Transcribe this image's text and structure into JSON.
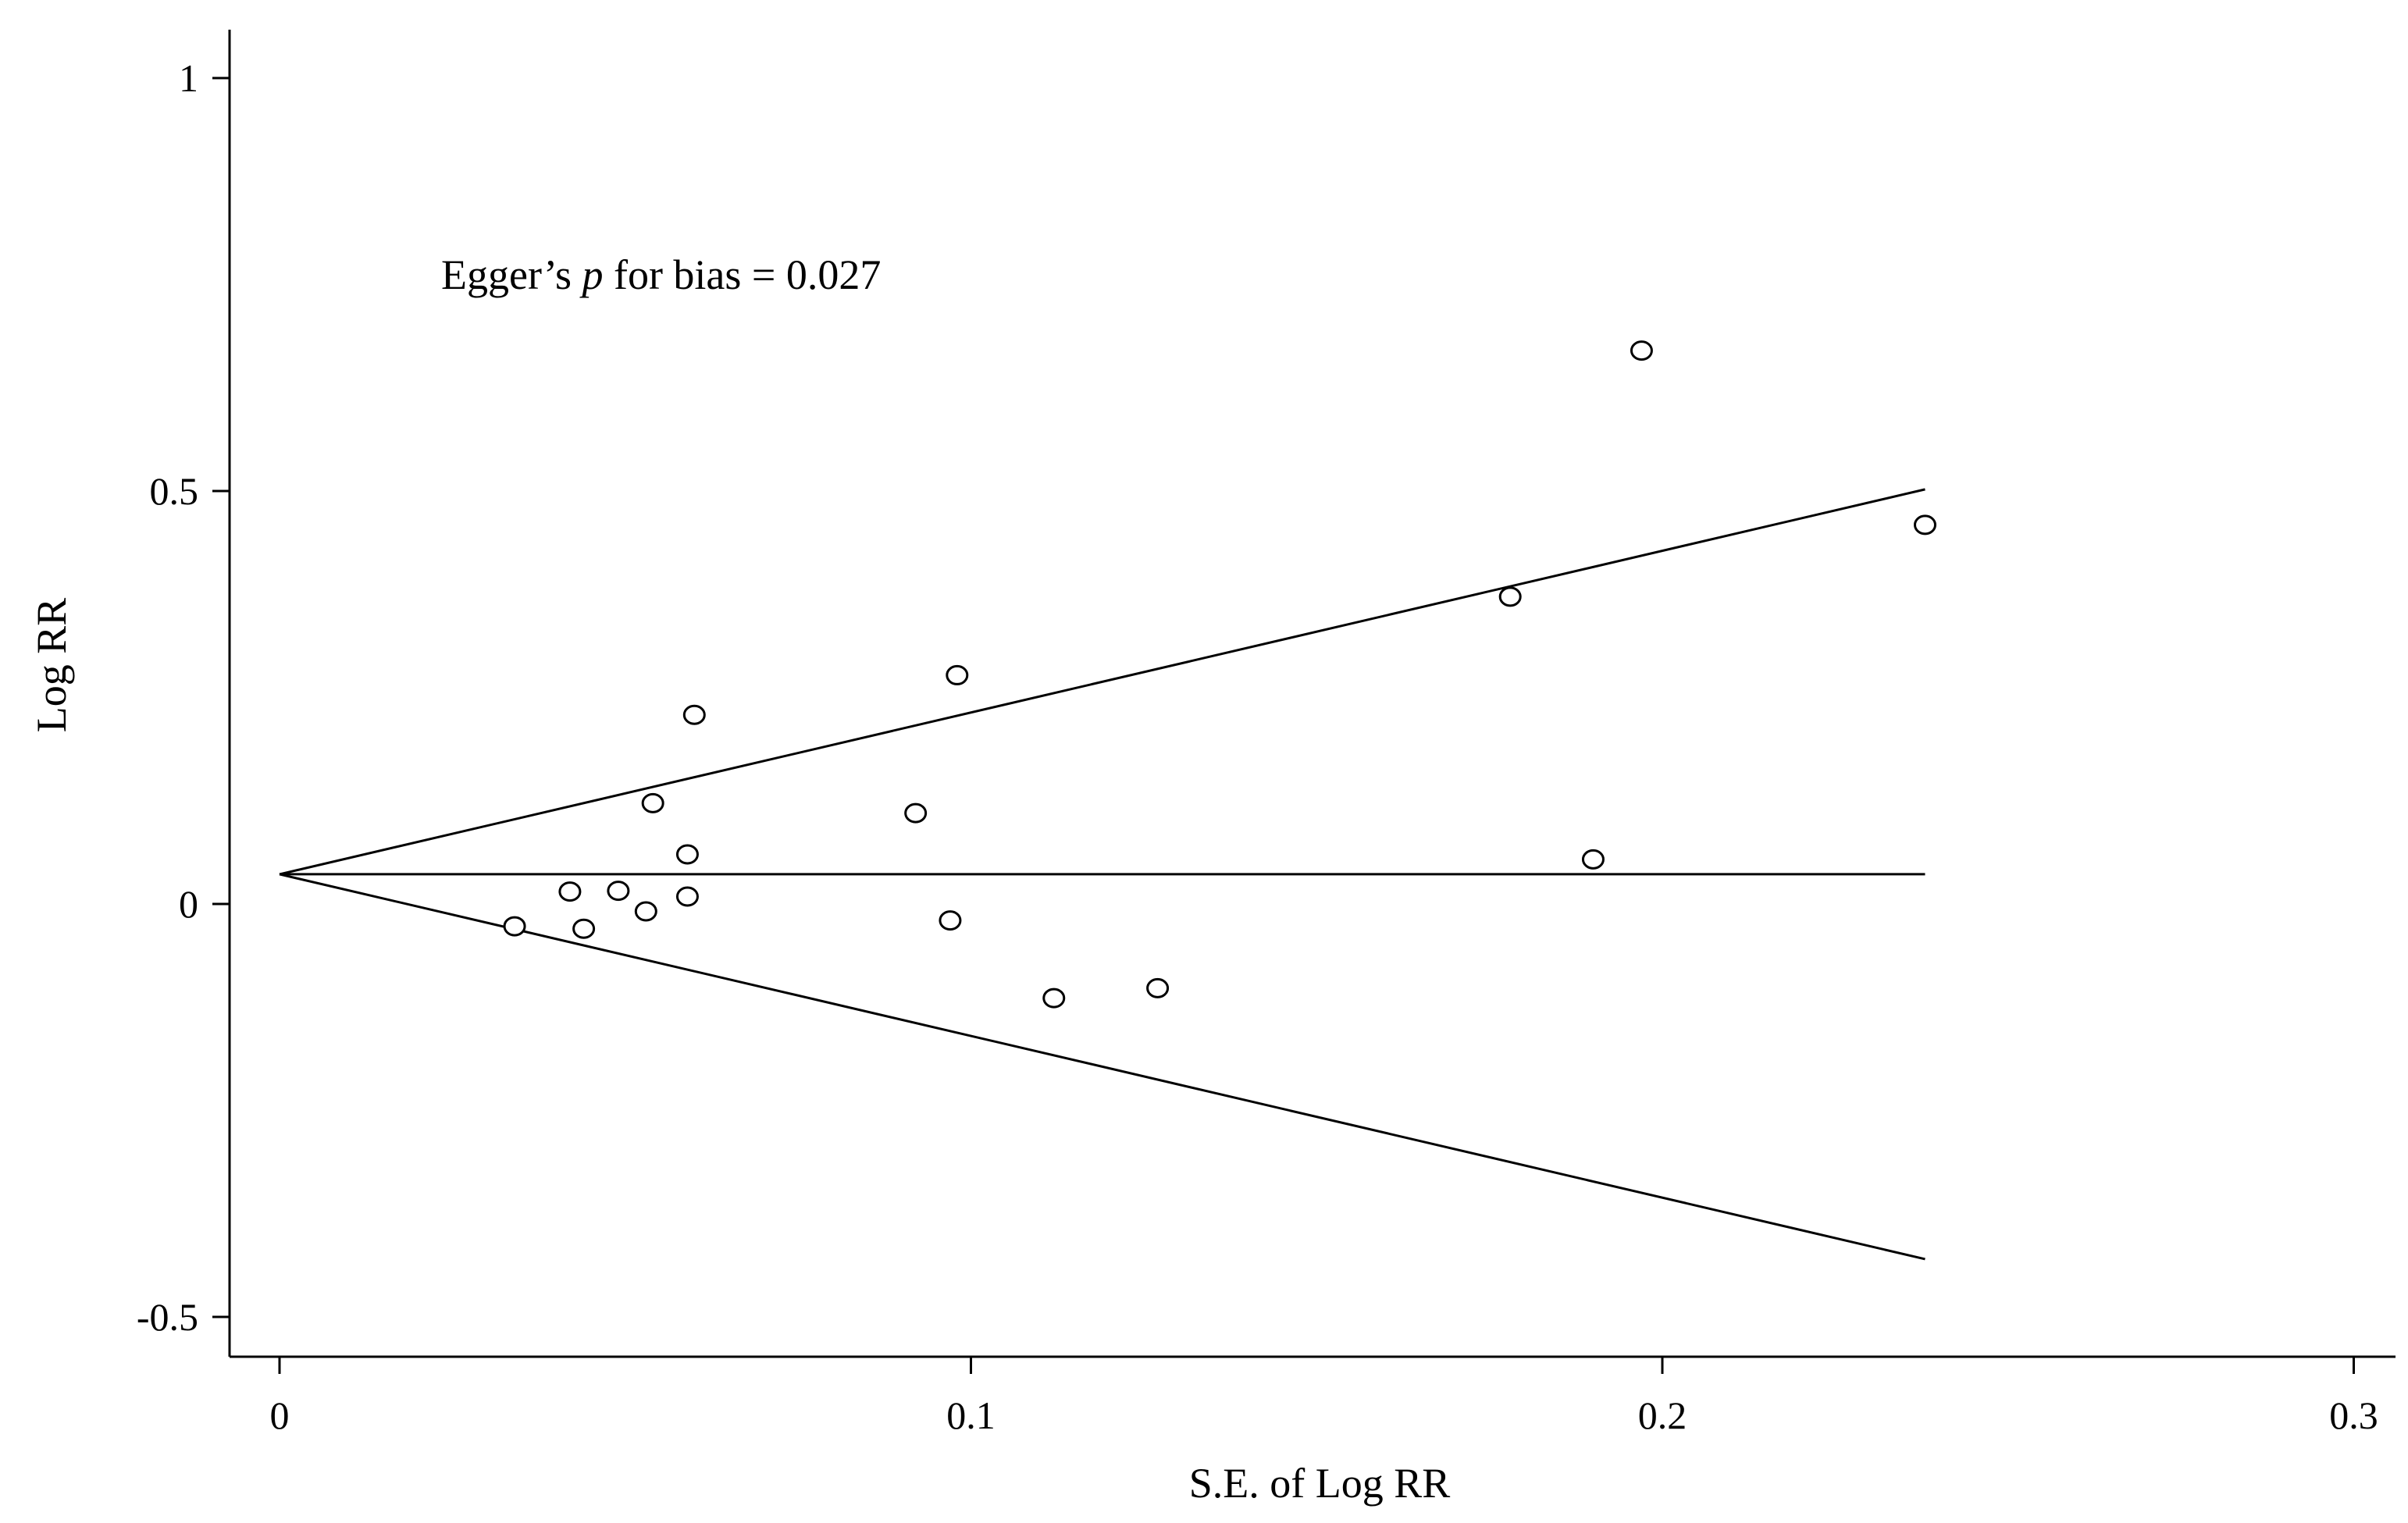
{
  "chart_data": {
    "type": "scatter",
    "subtype": "funnel plot",
    "title": "",
    "xlabel": "S.E. of Log RR",
    "ylabel": "Log RR",
    "xlim": [
      0,
      0.3
    ],
    "ylim": [
      -0.5,
      1
    ],
    "x_ticks": [
      {
        "value": 0,
        "label": "0"
      },
      {
        "value": 0.1,
        "label": "0.1"
      },
      {
        "value": 0.2,
        "label": "0.2"
      },
      {
        "value": 0.3,
        "label": "0.3"
      }
    ],
    "y_ticks": [
      {
        "value": -0.5,
        "label": "-0.5"
      },
      {
        "value": 0,
        "label": "0"
      },
      {
        "value": 0.5,
        "label": "0.5"
      },
      {
        "value": 1,
        "label": "1"
      }
    ],
    "grid": false,
    "annotation": {
      "prefix": "Egger’s ",
      "italic": "p",
      "suffix": " for bias = 0.027"
    },
    "pooled_estimate": 0.036,
    "funnel": {
      "se_max": 0.238,
      "upper_at_max": 0.502,
      "lower_at_max": -0.43
    },
    "points": [
      {
        "x": 0.034,
        "y": -0.027
      },
      {
        "x": 0.042,
        "y": 0.015
      },
      {
        "x": 0.044,
        "y": -0.03
      },
      {
        "x": 0.049,
        "y": 0.016
      },
      {
        "x": 0.053,
        "y": -0.009
      },
      {
        "x": 0.054,
        "y": 0.122
      },
      {
        "x": 0.059,
        "y": 0.06
      },
      {
        "x": 0.059,
        "y": 0.009
      },
      {
        "x": 0.06,
        "y": 0.229
      },
      {
        "x": 0.092,
        "y": 0.11
      },
      {
        "x": 0.097,
        "y": -0.02
      },
      {
        "x": 0.098,
        "y": 0.277
      },
      {
        "x": 0.112,
        "y": -0.114
      },
      {
        "x": 0.127,
        "y": -0.102
      },
      {
        "x": 0.178,
        "y": 0.372
      },
      {
        "x": 0.19,
        "y": 0.054
      },
      {
        "x": 0.197,
        "y": 0.67
      },
      {
        "x": 0.238,
        "y": 0.459
      }
    ]
  }
}
